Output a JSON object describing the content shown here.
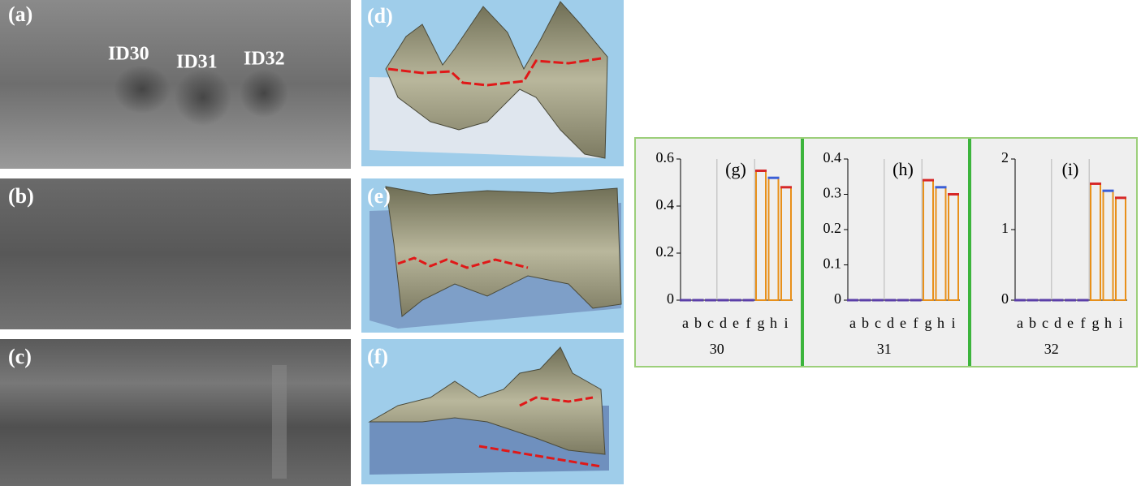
{
  "panels": [
    {
      "label": "(a)",
      "annotations": [
        "ID30",
        "ID31",
        "ID32"
      ]
    },
    {
      "label": "(b)"
    },
    {
      "label": "(c)"
    },
    {
      "label": "(d)"
    },
    {
      "label": "(e)"
    },
    {
      "label": "(f)"
    }
  ],
  "chart_data": [
    {
      "type": "bar",
      "title": "(g)",
      "xlabel": "30",
      "categories": [
        "a",
        "b",
        "c",
        "d",
        "e",
        "f",
        "g",
        "h",
        "i"
      ],
      "values": [
        0,
        0,
        0,
        0,
        0,
        0,
        0.55,
        0.52,
        0.48
      ],
      "colors": [
        "#5b3fa8",
        "#5b3fa8",
        "#5b3fa8",
        "#5b3fa8",
        "#5b3fa8",
        "#5b3fa8",
        "#d62828",
        "#3b5fd6",
        "#d62828"
      ],
      "ylim": [
        0,
        0.6
      ],
      "yticks": [
        0,
        0.2,
        0.4,
        0.6
      ]
    },
    {
      "type": "bar",
      "title": "(h)",
      "xlabel": "31",
      "categories": [
        "a",
        "b",
        "c",
        "d",
        "e",
        "f",
        "g",
        "h",
        "i"
      ],
      "values": [
        0,
        0,
        0,
        0,
        0,
        0,
        0.34,
        0.32,
        0.3
      ],
      "colors": [
        "#5b3fa8",
        "#5b3fa8",
        "#5b3fa8",
        "#5b3fa8",
        "#5b3fa8",
        "#5b3fa8",
        "#d62828",
        "#3b5fd6",
        "#d62828"
      ],
      "ylim": [
        0,
        0.4
      ],
      "yticks": [
        0,
        0.1,
        0.2,
        0.3,
        0.4
      ]
    },
    {
      "type": "bar",
      "title": "(i)",
      "xlabel": "32",
      "categories": [
        "a",
        "b",
        "c",
        "d",
        "e",
        "f",
        "g",
        "h",
        "i"
      ],
      "values": [
        0,
        0,
        0,
        0,
        0,
        0,
        1.65,
        1.55,
        1.45
      ],
      "colors": [
        "#5b3fa8",
        "#5b3fa8",
        "#5b3fa8",
        "#5b3fa8",
        "#5b3fa8",
        "#5b3fa8",
        "#d62828",
        "#3b5fd6",
        "#d62828"
      ],
      "ylim": [
        0,
        2
      ],
      "yticks": [
        0,
        1,
        2
      ]
    }
  ]
}
